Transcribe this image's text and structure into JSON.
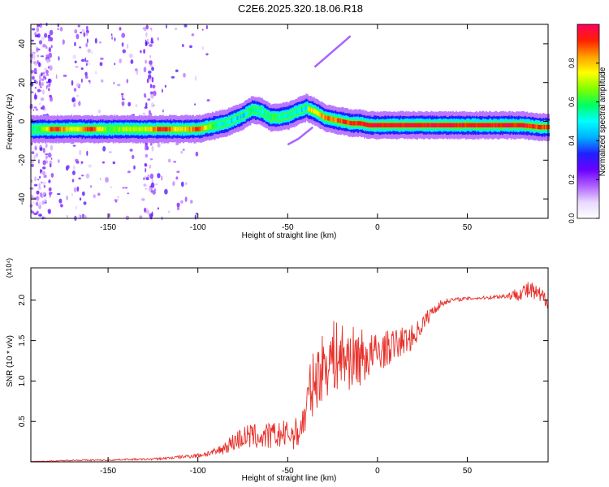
{
  "page_title": "C2E6.2025.320.18.06.R18",
  "chart_data": [
    {
      "type": "heatmap",
      "title": "C2E6.2025.320.18.06.R18",
      "xlabel": "Height of straight line (km)",
      "ylabel": "Frequency (Hz)",
      "xlim": [
        -193,
        95
      ],
      "ylim": [
        -50,
        50
      ],
      "xticks": [
        -150,
        -100,
        -50,
        0,
        50
      ],
      "yticks": [
        -40,
        -20,
        0,
        20,
        40
      ],
      "grid": false,
      "colorbar": {
        "label": "Normalized spectral amplitude",
        "range": [
          0,
          1
        ],
        "ticks": [
          "0.0",
          "0.2",
          "0.4",
          "0.6",
          "0.8"
        ],
        "colors": [
          "#ffffff",
          "#e8d8ff",
          "#b060ff",
          "#6a00ff",
          "#2020ff",
          "#00b0ff",
          "#00ffff",
          "#00ff60",
          "#80ff00",
          "#ffff00",
          "#ffa000",
          "#ff2000",
          "#ff0060"
        ]
      },
      "ridge": {
        "x": [
          -190,
          -180,
          -170,
          -160,
          -150,
          -140,
          -130,
          -120,
          -110,
          -100,
          -95,
          -90,
          -85,
          -80,
          -75,
          -70,
          -65,
          -60,
          -55,
          -50,
          -45,
          -40,
          -38,
          -35,
          -30,
          -25,
          -20,
          -15,
          -10,
          -5,
          0,
          10,
          20,
          30,
          40,
          50,
          60,
          70,
          80,
          90,
          95
        ],
        "freq": [
          -4,
          -4,
          -4,
          -4,
          -4,
          -4,
          -4,
          -4,
          -4,
          -4,
          -3,
          -2,
          -1,
          1,
          3,
          6,
          5,
          2,
          2,
          3,
          5,
          7,
          6,
          5,
          2,
          1,
          0,
          -1,
          -1,
          -2,
          -2,
          -2,
          -2,
          -2,
          -2,
          -2,
          -2,
          -2,
          -2,
          -3,
          -3
        ],
        "amplitude": [
          0.55,
          0.95,
          0.7,
          0.95,
          0.6,
          0.7,
          0.7,
          0.95,
          0.75,
          0.9,
          0.7,
          0.55,
          0.5,
          0.45,
          0.45,
          0.55,
          0.5,
          0.6,
          0.55,
          0.5,
          0.5,
          0.45,
          0.8,
          0.75,
          0.85,
          0.85,
          0.9,
          0.9,
          0.95,
          0.95,
          0.95,
          0.95,
          0.95,
          0.95,
          0.95,
          0.95,
          0.95,
          0.95,
          0.95,
          0.9,
          0.9
        ]
      },
      "feature": {
        "x": [
          -50,
          -44,
          -40,
          -36,
          -35,
          -30,
          -25,
          -20,
          -15
        ],
        "freq": [
          -12,
          -9,
          -6,
          -3,
          28,
          32,
          36,
          40,
          44
        ]
      }
    },
    {
      "type": "line",
      "title": "",
      "xlabel": "Height of straight line (km)",
      "ylabel": "SNR (10 * v/v)",
      "exponent_label": "(x10⁴)",
      "xlim": [
        -193,
        95
      ],
      "ylim": [
        0,
        2.4
      ],
      "xticks": [
        -150,
        -100,
        -50,
        0,
        50
      ],
      "yticks": [
        0.5,
        1.0,
        1.5,
        2.0
      ],
      "ytick_labels": [
        "0.5",
        "1.0",
        "1.5",
        "2.0"
      ],
      "grid": false,
      "series": [
        {
          "name": "SNR",
          "color": "#e8302a",
          "x": [
            -193,
            -180,
            -170,
            -160,
            -150,
            -140,
            -130,
            -120,
            -110,
            -100,
            -95,
            -90,
            -85,
            -80,
            -75,
            -70,
            -65,
            -60,
            -55,
            -50,
            -45,
            -42,
            -40,
            -38,
            -35,
            -30,
            -25,
            -20,
            -15,
            -10,
            -5,
            0,
            5,
            10,
            15,
            20,
            25,
            30,
            35,
            40,
            50,
            60,
            70,
            75,
            80,
            85,
            90,
            95
          ],
          "y": [
            0.005,
            0.01,
            0.02,
            0.02,
            0.02,
            0.03,
            0.03,
            0.04,
            0.06,
            0.08,
            0.1,
            0.12,
            0.18,
            0.25,
            0.3,
            0.32,
            0.3,
            0.32,
            0.33,
            0.34,
            0.35,
            0.45,
            0.6,
            0.85,
            1.0,
            1.2,
            1.3,
            1.3,
            1.28,
            1.3,
            1.3,
            1.35,
            1.4,
            1.45,
            1.5,
            1.55,
            1.7,
            1.85,
            1.95,
            2.0,
            2.02,
            2.03,
            2.05,
            2.06,
            2.1,
            2.12,
            2.05,
            2.0
          ],
          "noise": [
            0.002,
            0.005,
            0.008,
            0.008,
            0.008,
            0.01,
            0.012,
            0.015,
            0.02,
            0.03,
            0.04,
            0.05,
            0.08,
            0.12,
            0.15,
            0.16,
            0.16,
            0.17,
            0.17,
            0.18,
            0.2,
            0.22,
            0.28,
            0.35,
            0.4,
            0.42,
            0.45,
            0.45,
            0.4,
            0.38,
            0.3,
            0.25,
            0.22,
            0.2,
            0.18,
            0.15,
            0.12,
            0.08,
            0.05,
            0.03,
            0.02,
            0.02,
            0.03,
            0.06,
            0.1,
            0.12,
            0.12,
            0.1
          ]
        }
      ]
    }
  ]
}
